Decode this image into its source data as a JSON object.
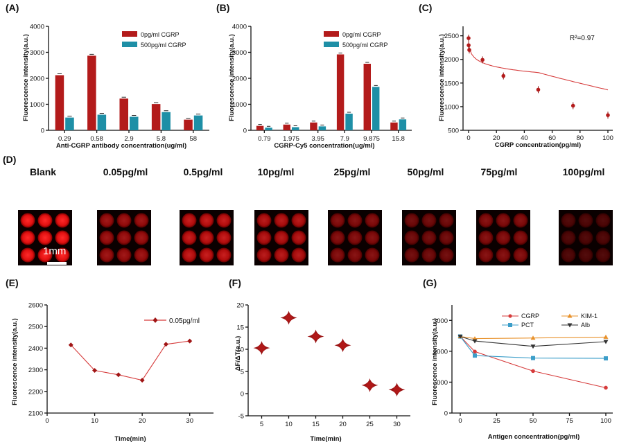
{
  "colors": {
    "red": "#b31b1b",
    "cyan": "#1e8fa6",
    "line": "#d63b3b",
    "dark": "#333333",
    "orange": "#e8912a",
    "blue": "#3c9ec9"
  },
  "chart_data": [
    {
      "id": "A",
      "panel_label": "(A)",
      "type": "bar",
      "categories": [
        "0.29",
        "0.58",
        "2.9",
        "5.8",
        "58"
      ],
      "series": [
        {
          "name": "0pg/ml CGRP",
          "values": [
            2120,
            2870,
            1220,
            1010,
            410
          ]
        },
        {
          "name": "500pg/ml CGRP",
          "values": [
            490,
            600,
            520,
            700,
            570
          ]
        }
      ],
      "xlabel": "Anti-CGRP antibody concentration(ug/ml)",
      "ylabel": "Fluorescence intensity(a.u.)",
      "ylim": [
        0,
        4000
      ],
      "yticks": [
        "0",
        "1000",
        "2000",
        "3000",
        "4000"
      ]
    },
    {
      "id": "B",
      "panel_label": "(B)",
      "type": "bar",
      "categories": [
        "0.79",
        "1.975",
        "3.95",
        "7.9",
        "9.875",
        "15.8"
      ],
      "series": [
        {
          "name": "0pg/ml CGRP",
          "values": [
            170,
            220,
            300,
            2920,
            2560,
            300
          ]
        },
        {
          "name": "500pg/ml CGRP",
          "values": [
            100,
            120,
            150,
            640,
            1670,
            420
          ]
        }
      ],
      "xlabel": "CGRP-Cy5 concentration(ug/ml)",
      "ylabel": "Fluorescence intensity(a.u.)",
      "ylim": [
        0,
        4000
      ],
      "yticks": [
        "0",
        "1000",
        "2000",
        "3000",
        "4000"
      ]
    },
    {
      "id": "C",
      "panel_label": "(C)",
      "type": "scatter",
      "x": [
        0,
        0.05,
        0.5,
        10,
        25,
        50,
        75,
        100
      ],
      "y": [
        2450,
        2300,
        2200,
        1990,
        1650,
        1360,
        1020,
        820
      ],
      "annotation": "R²=0.97",
      "xlabel": "CGRP concentration(pg/ml)",
      "ylabel": "Fluorescence intensity(a.u.)",
      "xlim": [
        0,
        100
      ],
      "ylim": [
        500,
        2700
      ],
      "xticks": [
        "0",
        "20",
        "40",
        "60",
        "80",
        "100"
      ],
      "yticks": [
        "500",
        "1000",
        "1500",
        "2000",
        "2500"
      ]
    },
    {
      "id": "E",
      "panel_label": "(E)",
      "type": "line",
      "series": [
        {
          "name": "0.05pg/ml",
          "x": [
            5,
            10,
            15,
            20,
            25,
            30
          ],
          "y": [
            2415,
            2297,
            2277,
            2252,
            2418,
            2433
          ]
        }
      ],
      "xlabel": "Time(min)",
      "ylabel": "Fluorescence intensity(a.u.)",
      "xlim": [
        0,
        35
      ],
      "ylim": [
        2100,
        2600
      ],
      "xticks": [
        "0",
        "10",
        "20",
        "30"
      ],
      "yticks": [
        "2100",
        "2200",
        "2300",
        "2400",
        "2500",
        "2600"
      ]
    },
    {
      "id": "F",
      "panel_label": "(F)",
      "type": "scatter",
      "categories": [
        "5",
        "10",
        "15",
        "20",
        "25",
        "30"
      ],
      "values": [
        10.3,
        17.1,
        12.9,
        10.9,
        1.9,
        0.9
      ],
      "xlabel": "Time(min)",
      "ylabel": "ΔF/ΔT(a.u.)",
      "ylim": [
        -5,
        20
      ],
      "yticks": [
        "-5",
        "0",
        "5",
        "10",
        "15",
        "20"
      ]
    },
    {
      "id": "G",
      "panel_label": "(G)",
      "type": "line",
      "series": [
        {
          "name": "CGRP",
          "x": [
            0,
            10,
            50,
            100
          ],
          "y": [
            2480,
            1990,
            1360,
            820
          ]
        },
        {
          "name": "PCT",
          "x": [
            0,
            10,
            50,
            100
          ],
          "y": [
            2480,
            1860,
            1780,
            1770
          ]
        },
        {
          "name": "KIM-1",
          "x": [
            0,
            10,
            50,
            100
          ],
          "y": [
            2480,
            2410,
            2430,
            2460
          ]
        },
        {
          "name": "Alb",
          "x": [
            0,
            10,
            50,
            100
          ],
          "y": [
            2480,
            2330,
            2160,
            2310
          ]
        }
      ],
      "xlabel": "Antigen concentration(pg/ml)",
      "ylabel": "Fluorescence intensity(a.u.)",
      "xlim": [
        0,
        100
      ],
      "ylim": [
        0,
        3500
      ],
      "xticks": [
        "0",
        "25",
        "50",
        "75",
        "100"
      ],
      "yticks": [
        "0",
        "1000",
        "2000",
        "3000"
      ]
    }
  ],
  "wells": {
    "panel_label": "(D)",
    "scale_bar": "1mm",
    "items": [
      {
        "title": "Blank",
        "brightness": 1.0
      },
      {
        "title": "0.05pg/ml",
        "brightness": 0.62
      },
      {
        "title": "0.5pg/ml",
        "brightness": 0.78
      },
      {
        "title": "10pg/ml",
        "brightness": 0.72
      },
      {
        "title": "25pg/ml",
        "brightness": 0.52
      },
      {
        "title": "50pg/ml",
        "brightness": 0.44
      },
      {
        "title": "75pg/ml",
        "brightness": 0.52
      },
      {
        "title": "100pg/ml",
        "brightness": 0.3
      }
    ]
  }
}
